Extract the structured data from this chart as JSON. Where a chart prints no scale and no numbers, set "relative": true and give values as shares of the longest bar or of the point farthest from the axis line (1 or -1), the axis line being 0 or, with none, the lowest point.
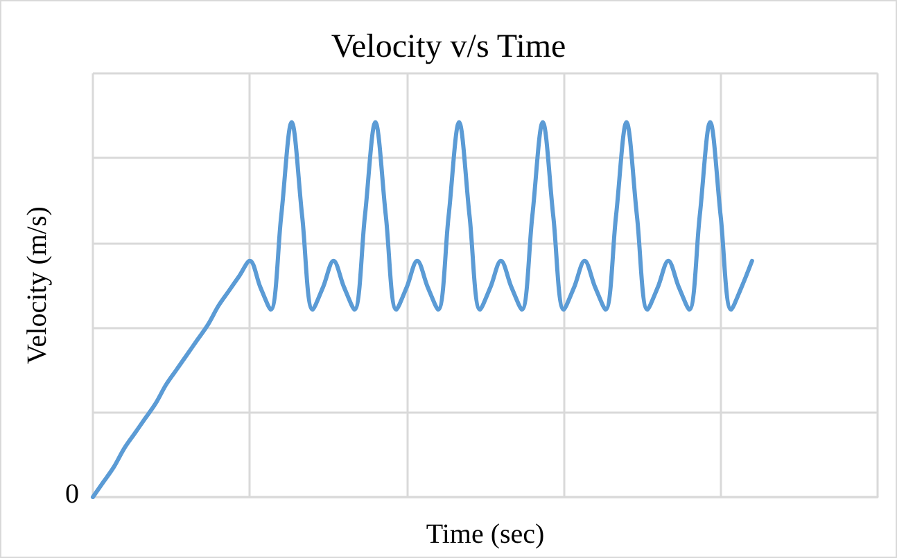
{
  "chart_data": {
    "type": "line",
    "title": "Velocity v/s Time",
    "xlabel": "Time (sec)",
    "ylabel": "Velocity (m/s)",
    "relative": true,
    "grid": true,
    "line_style": "solid",
    "annotations": [
      "0"
    ],
    "categories": [
      null,
      null,
      null,
      null,
      null,
      null,
      null,
      null,
      null,
      null,
      null,
      null,
      null,
      null,
      null,
      null,
      null,
      null,
      null,
      null,
      null,
      null,
      null,
      null,
      null,
      null,
      null,
      null,
      null,
      null,
      null,
      null,
      null,
      null,
      null,
      null,
      null,
      null,
      null,
      null,
      null,
      null,
      null,
      null,
      null,
      null,
      null,
      null,
      null,
      null,
      null,
      null,
      null,
      null,
      null,
      null,
      null,
      null,
      null,
      null,
      null,
      null,
      null,
      null,
      null,
      null,
      null,
      null,
      null,
      null,
      null,
      null,
      null,
      null,
      null,
      null
    ],
    "series": [
      {
        "color": "#5b9bd5",
        "values": [
          0,
          0.04,
          0.08,
          0.13,
          0.17,
          0.21,
          0.25,
          0.3,
          0.34,
          0.38,
          0.42,
          0.46,
          0.51,
          0.55,
          0.59,
          0.63,
          0.56,
          0.5,
          0.75,
          1,
          0.75,
          0.5,
          0.56,
          0.63,
          0.56,
          0.5,
          0.75,
          1,
          0.75,
          0.5,
          0.56,
          0.63,
          0.56,
          0.5,
          0.75,
          1,
          0.75,
          0.5,
          0.56,
          0.63,
          0.56,
          0.5,
          0.75,
          1,
          0.75,
          0.5,
          0.56,
          0.63,
          0.56,
          0.5,
          0.75,
          1,
          0.75,
          0.5,
          0.56,
          0.63,
          0.56,
          0.5,
          0.75,
          1,
          0.75,
          0.5,
          0.56,
          0.63,
          null,
          null,
          null,
          null,
          null,
          null,
          null,
          null,
          null,
          null,
          null,
          null
        ]
      }
    ]
  }
}
